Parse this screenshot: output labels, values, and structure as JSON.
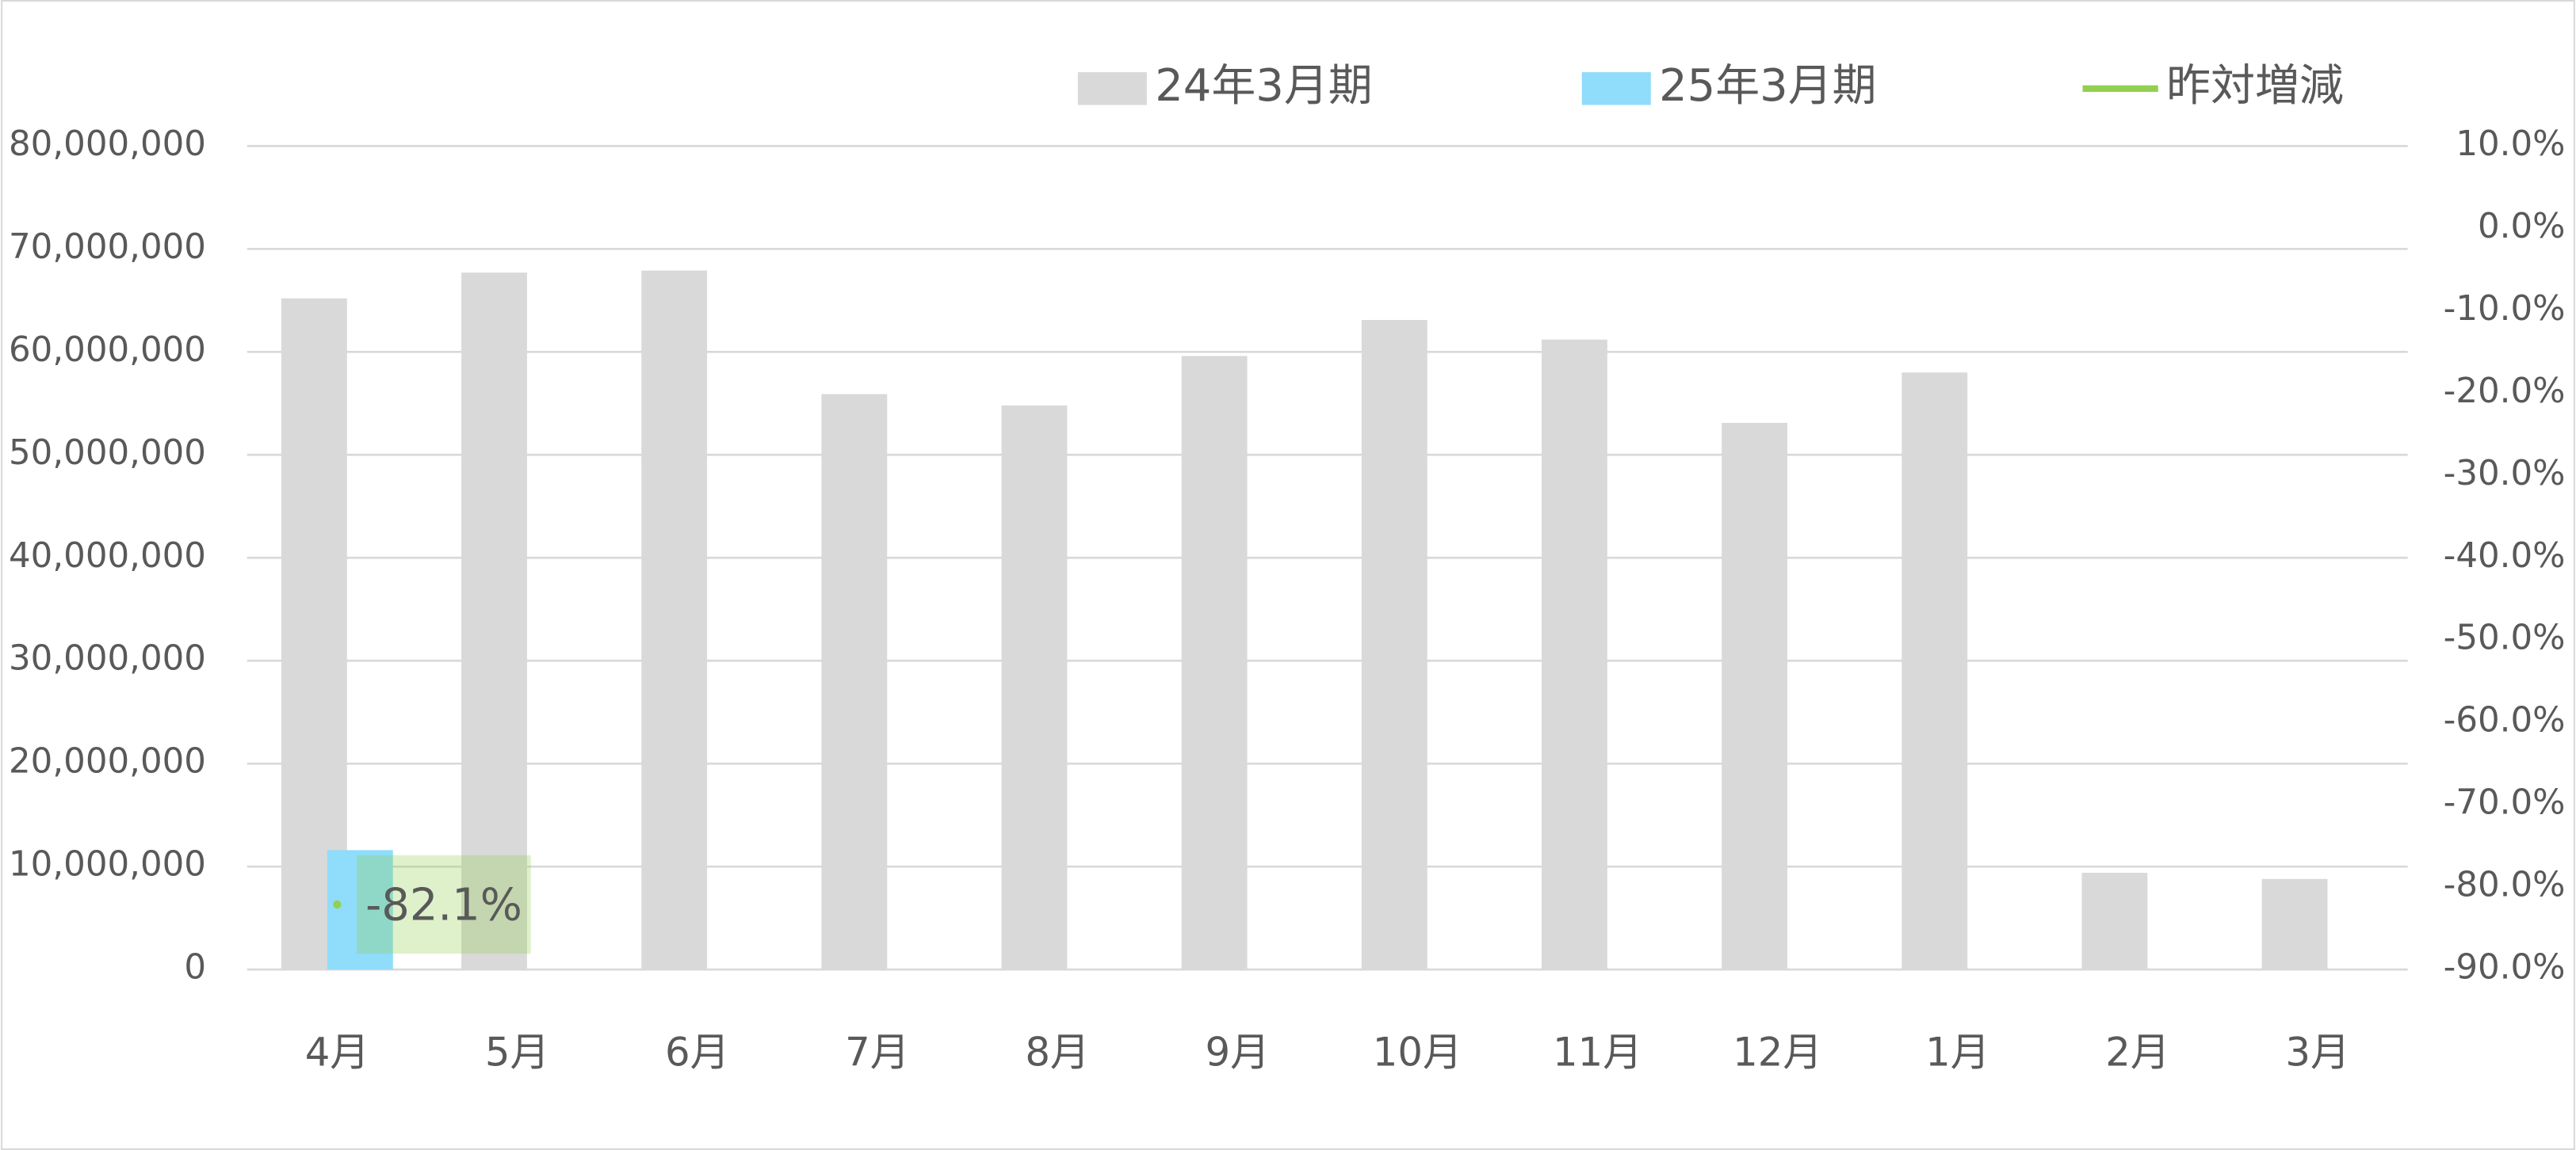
{
  "chart_data": {
    "type": "bar",
    "categories": [
      "4月",
      "5月",
      "6月",
      "7月",
      "8月",
      "9月",
      "10月",
      "11月",
      "12月",
      "1月",
      "2月",
      "3月"
    ],
    "series": [
      {
        "name": "24年3月期",
        "type": "bar",
        "color": "#d9d9d9",
        "values": [
          65200000,
          67700000,
          67900000,
          55900000,
          54800000,
          59600000,
          63100000,
          61200000,
          53100000,
          58000000,
          9400000,
          8800000
        ]
      },
      {
        "name": "25年3月期",
        "type": "bar",
        "color": "#8fdcfb",
        "values": [
          11600000,
          null,
          null,
          null,
          null,
          null,
          null,
          null,
          null,
          null,
          null,
          null
        ]
      },
      {
        "name": "昨対増減",
        "type": "line",
        "axis": "y2",
        "color": "#92d050",
        "values": [
          -82.1,
          null,
          null,
          null,
          null,
          null,
          null,
          null,
          null,
          null,
          null,
          null
        ],
        "value_labels": [
          "-82.1%",
          null,
          null,
          null,
          null,
          null,
          null,
          null,
          null,
          null,
          null,
          null
        ]
      }
    ],
    "ylim": [
      0,
      80000000
    ],
    "yticks": [
      0,
      {
        "value": 10000000,
        "label": "10,000,000"
      },
      {
        "value": 20000000,
        "label": "20,000,000"
      },
      {
        "value": 30000000,
        "label": "30,000,000"
      },
      {
        "value": 40000000,
        "label": "40,000,000"
      },
      {
        "value": 50000000,
        "label": "50,000,000"
      },
      {
        "value": 60000000,
        "label": "60,000,000"
      },
      {
        "value": 70000000,
        "label": "70,000,000"
      },
      {
        "value": 80000000,
        "label": "80,000,000"
      }
    ],
    "y2lim": [
      -90,
      10
    ],
    "y2ticks": [
      {
        "value": -90,
        "label": "-90.0%"
      },
      {
        "value": -80,
        "label": "-80.0%"
      },
      {
        "value": -70,
        "label": "-70.0%"
      },
      {
        "value": -60,
        "label": "-60.0%"
      },
      {
        "value": -50,
        "label": "-50.0%"
      },
      {
        "value": -40,
        "label": "-40.0%"
      },
      {
        "value": -30,
        "label": "-30.0%"
      },
      {
        "value": -20,
        "label": "-20.0%"
      },
      {
        "value": -10,
        "label": "-10.0%"
      },
      {
        "value": 0,
        "label": "0.0%"
      },
      {
        "value": 10,
        "label": "10.0%"
      }
    ],
    "grid": true,
    "legend": "top"
  }
}
